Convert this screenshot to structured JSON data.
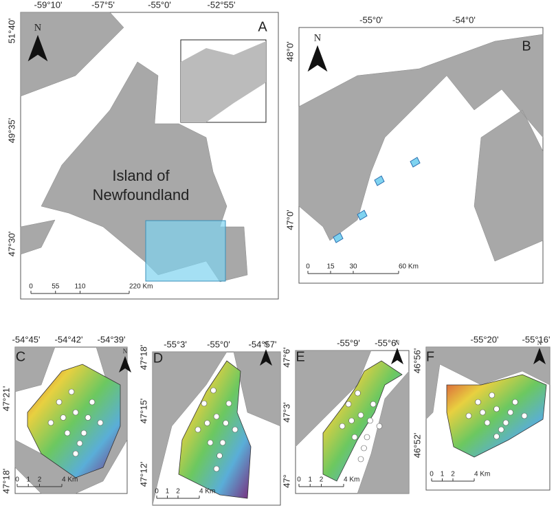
{
  "panels": [
    {
      "letter": "A",
      "north": "N",
      "top_labels": [
        "-59°10'",
        "-57°5'",
        "-55°0'",
        "-52°55'"
      ],
      "left_labels": [
        "51°40'",
        "49°35'",
        "47°30'"
      ],
      "scale_labels": [
        "0",
        "55",
        "110",
        "220 Km"
      ],
      "island_label": [
        "Island of",
        "Newfoundland"
      ]
    },
    {
      "letter": "B",
      "north": "N",
      "top_labels": [
        "-55°0'",
        "-54°0'"
      ],
      "left_labels": [
        "48°0'",
        "47°0'"
      ],
      "scale_labels": [
        "0",
        "15",
        "30",
        "60 Km"
      ]
    },
    {
      "letter": "C",
      "north": "N",
      "top_labels": [
        "-54°45'",
        "-54°42'",
        "-54°39'"
      ],
      "left_labels": [
        "47°21'",
        "47°18'"
      ],
      "scale_labels": [
        "0",
        "1",
        "2",
        "4 Km"
      ]
    },
    {
      "letter": "D",
      "north": "N",
      "top_labels": [
        "-55°3'",
        "-55°0'",
        "-54°57'"
      ],
      "left_labels": [
        "47°18'",
        "47°15'",
        "47°12'"
      ],
      "scale_labels": [
        "0",
        "1",
        "2",
        "4 Km"
      ]
    },
    {
      "letter": "E",
      "north": "N",
      "top_labels": [
        "-55°9'",
        "-55°6'"
      ],
      "left_labels": [
        "47°6'",
        "47°3'",
        "47°"
      ],
      "scale_labels": [
        "0",
        "1",
        "2",
        "4 Km"
      ]
    },
    {
      "letter": "F",
      "north": "N",
      "top_labels": [
        "-55°20'",
        "-55°16'"
      ],
      "left_labels": [
        "46°56'",
        "46°52'"
      ],
      "scale_labels": [
        "0",
        "1",
        "2",
        "4 Km"
      ]
    }
  ]
}
